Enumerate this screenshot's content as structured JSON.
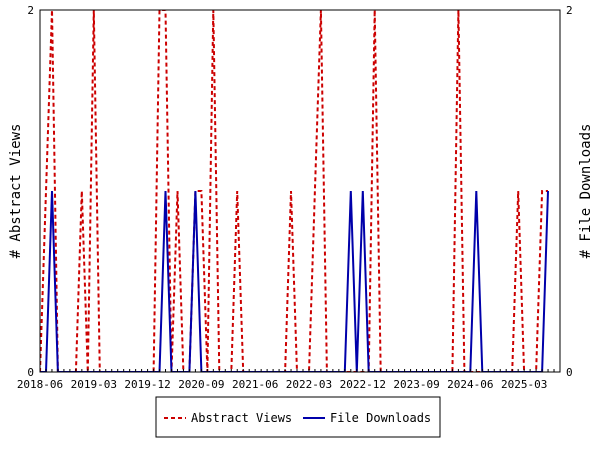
{
  "chart_data": {
    "type": "line",
    "title": "",
    "ylabel_left": "# Abstract Views",
    "ylabel_right": "# File Downloads",
    "ylim_left": [
      0,
      2
    ],
    "ylim_right": [
      0,
      2
    ],
    "y_ticks_left": [
      "0",
      "2"
    ],
    "y_ticks_right": [
      "0",
      "2"
    ],
    "x_range": [
      "2018-06",
      "2025-09"
    ],
    "x_tick_labels": [
      "2018-06",
      "2019-03",
      "2019-12",
      "2020-09",
      "2021-06",
      "2022-03",
      "2022-12",
      "2023-09",
      "2024-06",
      "2025-03"
    ],
    "grid": false,
    "legend_position": "bottom",
    "colors": {
      "abstract_views": "#cc0000",
      "file_downloads": "#0000aa"
    },
    "series": [
      {
        "name": "Abstract Views",
        "axis": "left",
        "style": "dashed",
        "points": [
          [
            "2018-06",
            0
          ],
          [
            "2018-07",
            1
          ],
          [
            "2018-08",
            2
          ],
          [
            "2018-09",
            0
          ],
          [
            "2018-12",
            0
          ],
          [
            "2019-01",
            1
          ],
          [
            "2019-02",
            0
          ],
          [
            "2019-03",
            2
          ],
          [
            "2019-04",
            0
          ],
          [
            "2020-01",
            0
          ],
          [
            "2020-02",
            2
          ],
          [
            "2020-03",
            2
          ],
          [
            "2020-04",
            0
          ],
          [
            "2020-05",
            1
          ],
          [
            "2020-06",
            0
          ],
          [
            "2020-07",
            0
          ],
          [
            "2020-08",
            1
          ],
          [
            "2020-09",
            1
          ],
          [
            "2020-10",
            0
          ],
          [
            "2020-11",
            2
          ],
          [
            "2020-12",
            0
          ],
          [
            "2021-02",
            0
          ],
          [
            "2021-03",
            1
          ],
          [
            "2021-04",
            0
          ],
          [
            "2021-11",
            0
          ],
          [
            "2021-12",
            1
          ],
          [
            "2022-01",
            0
          ],
          [
            "2022-03",
            0
          ],
          [
            "2022-04",
            1
          ],
          [
            "2022-05",
            2
          ],
          [
            "2022-06",
            0
          ],
          [
            "2023-01",
            0
          ],
          [
            "2023-02",
            2
          ],
          [
            "2023-03",
            0
          ],
          [
            "2024-03",
            0
          ],
          [
            "2024-04",
            2
          ],
          [
            "2024-05",
            0
          ],
          [
            "2025-01",
            0
          ],
          [
            "2025-02",
            1
          ],
          [
            "2025-03",
            0
          ],
          [
            "2025-05",
            0
          ],
          [
            "2025-06",
            1
          ],
          [
            "2025-07",
            1
          ]
        ]
      },
      {
        "name": "File Downloads",
        "axis": "right",
        "style": "solid",
        "points": [
          [
            "2018-06",
            0
          ],
          [
            "2018-07",
            0
          ],
          [
            "2018-08",
            1
          ],
          [
            "2018-09",
            0
          ],
          [
            "2020-01",
            0
          ],
          [
            "2020-02",
            0
          ],
          [
            "2020-03",
            1
          ],
          [
            "2020-04",
            0
          ],
          [
            "2020-07",
            0
          ],
          [
            "2020-08",
            1
          ],
          [
            "2020-09",
            0
          ],
          [
            "2022-09",
            0
          ],
          [
            "2022-10",
            1
          ],
          [
            "2022-11",
            0
          ],
          [
            "2022-12",
            1
          ],
          [
            "2023-01",
            0
          ],
          [
            "2024-06",
            0
          ],
          [
            "2024-07",
            1
          ],
          [
            "2024-08",
            0
          ],
          [
            "2025-06",
            0
          ],
          [
            "2025-07",
            1
          ]
        ]
      }
    ]
  }
}
